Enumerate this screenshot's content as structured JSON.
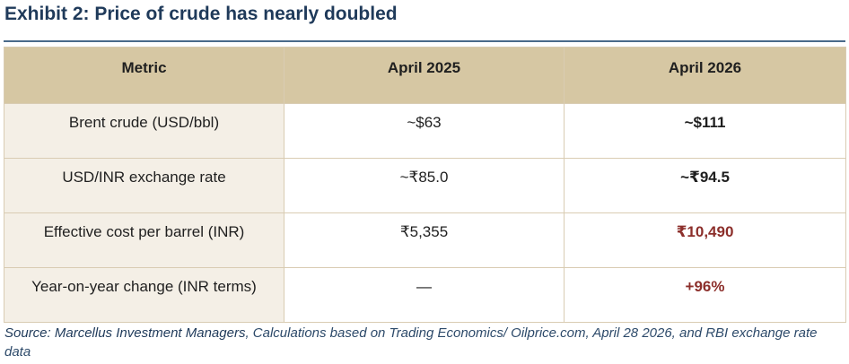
{
  "title": "Exhibit 2: Price of crude has nearly doubled",
  "table": {
    "headers": [
      "Metric",
      "April 2025",
      "April 2026"
    ],
    "rows": [
      {
        "metric": "Brent crude (USD/bbl)",
        "apr2025": "~$63",
        "apr2026": "~$111"
      },
      {
        "metric": "USD/INR exchange rate",
        "apr2025": "~₹85.0",
        "apr2026": "~₹94.5"
      },
      {
        "metric": "Effective cost per barrel (INR)",
        "apr2025": "₹5,355",
        "apr2026": "₹10,490"
      },
      {
        "metric": "Year-on-year change (INR terms)",
        "apr2025": "—",
        "apr2026": "+96%"
      }
    ]
  },
  "source": {
    "lead": "Source: Marcellus Investment Managers",
    "rest": ", Calculations based on Trading Economics/ Oilprice.com, April 28 2026, and RBI exchange rate data"
  },
  "colors": {
    "header_bg": "#d6c7a3",
    "metric_bg": "#f4efe6",
    "highlight_red": "#8c2f2b",
    "title_blue": "#1f3a5a"
  }
}
